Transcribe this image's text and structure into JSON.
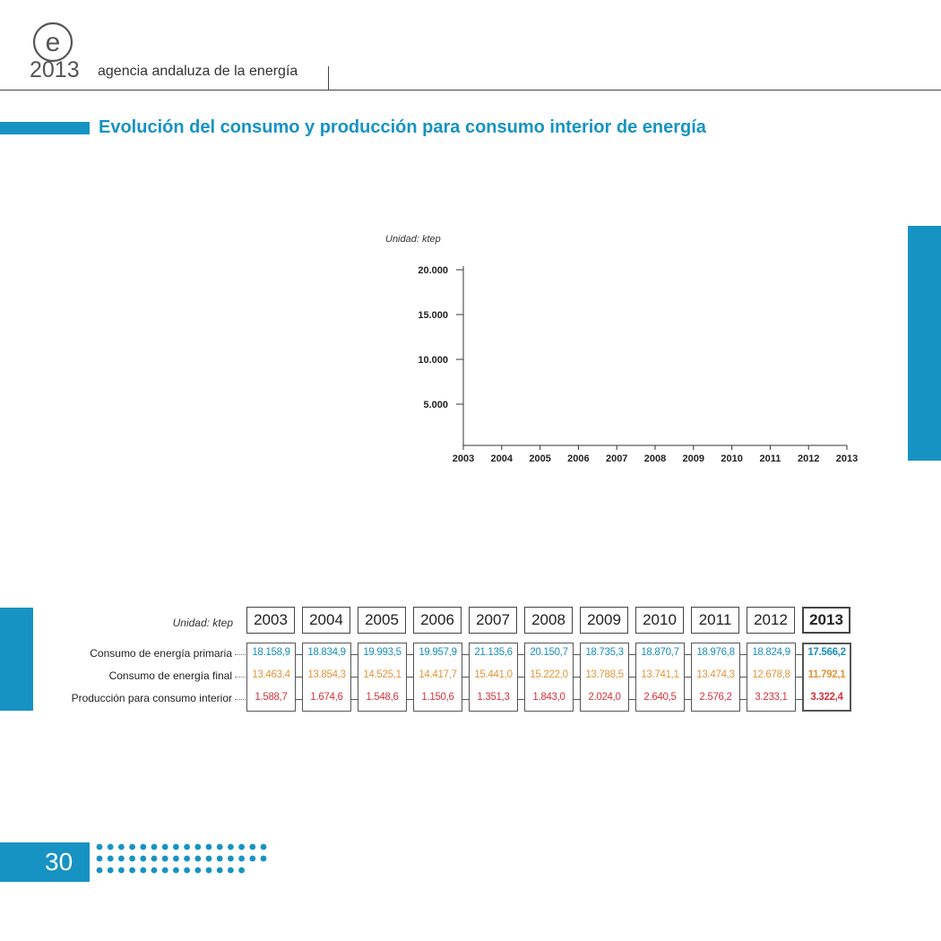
{
  "header": {
    "logo_letter": "e",
    "logo_year": "2013",
    "agency": "agencia andaluza de la energía"
  },
  "page": {
    "title": "Evolución del consumo y producción para consumo interior de energía",
    "number": "30"
  },
  "colors": {
    "accent": "#1793c3",
    "primaria": "#1a8fb8",
    "final": "#e3943a",
    "produccion": "#d5343c"
  },
  "chart_data": {
    "type": "line",
    "unit_label": "Unidad: ktep",
    "x": [
      "2003",
      "2004",
      "2005",
      "2006",
      "2007",
      "2008",
      "2009",
      "2010",
      "2011",
      "2012",
      "2013"
    ],
    "y_ticks": [
      "5.000",
      "10.000",
      "15.000",
      "20.000"
    ],
    "y_tick_values": [
      5000,
      10000,
      15000,
      20000
    ],
    "ylim": [
      0,
      20000
    ],
    "series": []
  },
  "table": {
    "unit_label": "Unidad: ktep",
    "years": [
      "2003",
      "2004",
      "2005",
      "2006",
      "2007",
      "2008",
      "2009",
      "2010",
      "2011",
      "2012",
      "2013"
    ],
    "rows": [
      {
        "label": "Consumo de energía primaria",
        "color_key": "primaria",
        "values": [
          "18.158,9",
          "18.834,9",
          "19.993,5",
          "19.957,9",
          "21.135,6",
          "20.150,7",
          "18.735,3",
          "18.870,7",
          "18.976,8",
          "18.824,9",
          "17.566,2"
        ]
      },
      {
        "label": "Consumo de energía final",
        "color_key": "final",
        "values": [
          "13.463,4",
          "13.854,3",
          "14.525,1",
          "14.417,7",
          "15.441,0",
          "15.222,0",
          "13.788,5",
          "13.741,1",
          "13.474,3",
          "12.678,8",
          "11.792,1"
        ]
      },
      {
        "label": "Producción para consumo interior",
        "color_key": "produccion",
        "values": [
          "1.588,7",
          "1.674,6",
          "1.548,6",
          "1.150,6",
          "1.351,3",
          "1.843,0",
          "2.024,0",
          "2.640,5",
          "2.576,2",
          "3.233,1",
          "3.322,4"
        ]
      }
    ]
  }
}
